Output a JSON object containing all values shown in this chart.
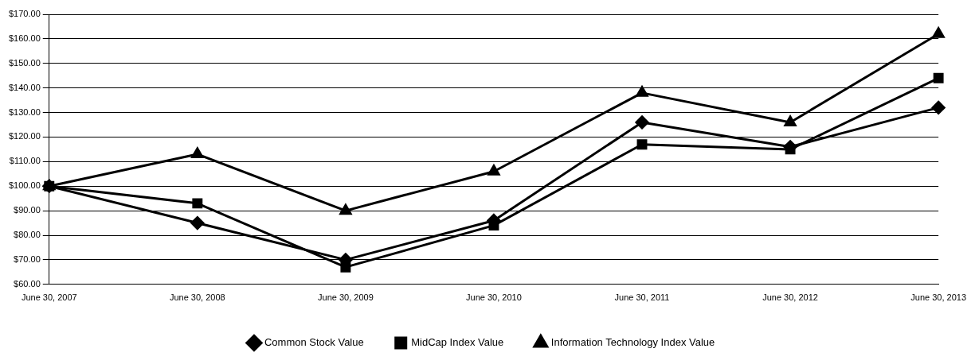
{
  "chart_data": {
    "type": "line",
    "categories": [
      "June 30, 2007",
      "June 30, 2008",
      "June 30, 2009",
      "June 30, 2010",
      "June 30, 2011",
      "June 30, 2012",
      "June 30, 2013"
    ],
    "series": [
      {
        "name": "Common Stock Value",
        "color": "#000000",
        "marker": "diamond",
        "values": [
          100,
          85,
          70,
          86,
          126,
          116,
          132
        ]
      },
      {
        "name": "MidCap Index Value",
        "color": "#000000",
        "marker": "square",
        "values": [
          100,
          93,
          67,
          84,
          117,
          115,
          144
        ]
      },
      {
        "name": "Information Technology Index Value",
        "color": "#000000",
        "marker": "triangle",
        "values": [
          100,
          113,
          90,
          106,
          138,
          126,
          162
        ]
      }
    ],
    "ylim": [
      60,
      170
    ],
    "yticks": [
      {
        "value": 60,
        "label": "$60.00"
      },
      {
        "value": 70,
        "label": "$70.00"
      },
      {
        "value": 80,
        "label": "$80.00"
      },
      {
        "value": 90,
        "label": "$90.00"
      },
      {
        "value": 100,
        "label": "$100.00"
      },
      {
        "value": 110,
        "label": "$110.00"
      },
      {
        "value": 120,
        "label": "$120.00"
      },
      {
        "value": 130,
        "label": "$130.00"
      },
      {
        "value": 140,
        "label": "$140.00"
      },
      {
        "value": 150,
        "label": "$150.00"
      },
      {
        "value": 160,
        "label": "$160.00"
      },
      {
        "value": 170,
        "label": "$170.00"
      }
    ],
    "grid": "y",
    "legend": "bottom",
    "line_style": "solid"
  }
}
